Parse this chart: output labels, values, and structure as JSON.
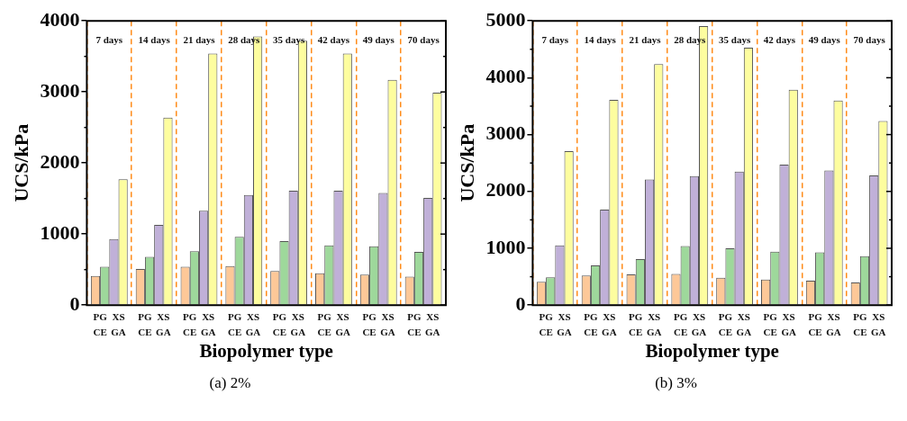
{
  "chart_data": [
    {
      "type": "bar",
      "subtitle": "(a) 2%",
      "xlabel": "Biopolymer type",
      "ylabel": "UCS/kPa",
      "categories": [
        "7 days",
        "14 days",
        "21 days",
        "28 days",
        "35 days",
        "42 days",
        "49 days",
        "70 days"
      ],
      "ylim": [
        0,
        4000
      ],
      "yticks": [
        0,
        1000,
        2000,
        3000,
        4000
      ],
      "grid": "x",
      "legend": false,
      "series": [
        {
          "name": "PG",
          "color": "#fdc898",
          "values": [
            410,
            510,
            540,
            550,
            480,
            450,
            430,
            400
          ]
        },
        {
          "name": "XS",
          "color": "#9ed89b",
          "values": [
            540,
            680,
            760,
            960,
            900,
            840,
            830,
            750
          ]
        },
        {
          "name": "CE",
          "color": "#c0b0d8",
          "values": [
            930,
            1130,
            1330,
            1550,
            1610,
            1610,
            1580,
            1510
          ]
        },
        {
          "name": "GA",
          "color": "#fdfd9f",
          "values": [
            1770,
            2640,
            3540,
            3780,
            3720,
            3540,
            3170,
            2990
          ]
        }
      ]
    },
    {
      "type": "bar",
      "subtitle": "(b) 3%",
      "xlabel": "Biopolymer type",
      "ylabel": "UCS/kPa",
      "categories": [
        "7 days",
        "14 days",
        "21 days",
        "28 days",
        "35 days",
        "42 days",
        "49 days",
        "70 days"
      ],
      "ylim": [
        0,
        5000
      ],
      "yticks": [
        0,
        1000,
        2000,
        3000,
        4000,
        5000
      ],
      "grid": "x",
      "legend": false,
      "series": [
        {
          "name": "PG",
          "color": "#fdc898",
          "values": [
            410,
            520,
            540,
            550,
            480,
            450,
            430,
            400
          ]
        },
        {
          "name": "XS",
          "color": "#9ed89b",
          "values": [
            490,
            700,
            810,
            1040,
            1000,
            940,
            930,
            860
          ]
        },
        {
          "name": "CE",
          "color": "#c0b0d8",
          "values": [
            1050,
            1680,
            2210,
            2270,
            2350,
            2470,
            2370,
            2280
          ]
        },
        {
          "name": "GA",
          "color": "#fdfd9f",
          "values": [
            2710,
            3610,
            4240,
            4910,
            4530,
            3790,
            3600,
            3240
          ]
        }
      ]
    }
  ]
}
